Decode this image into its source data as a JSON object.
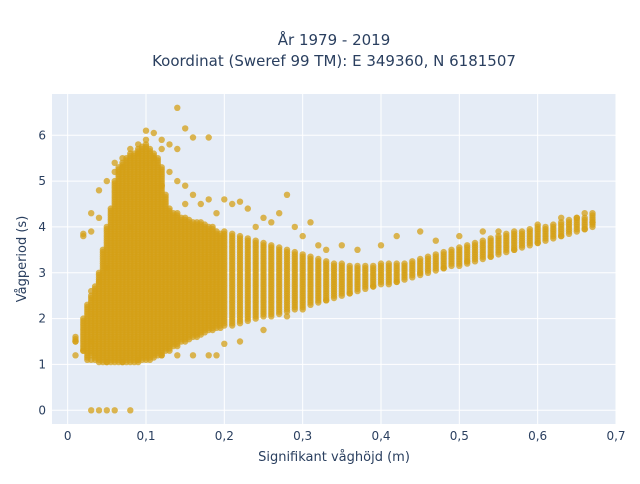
{
  "chart_data": {
    "type": "scatter",
    "title_lines": [
      "År 1979 - 2019",
      "Koordinat (Sweref 99 TM): E 349360, N 6181507"
    ],
    "xlabel": "Signifikant våghöjd (m)",
    "ylabel": "Vågperiod (s)",
    "xlim": [
      -0.02,
      0.7
    ],
    "ylim": [
      -0.3,
      6.9
    ],
    "xticks": [
      0,
      0.1,
      0.2,
      0.3,
      0.4,
      0.5,
      0.6,
      0.7
    ],
    "xtick_labels": [
      "0",
      "0,1",
      "0,2",
      "0,3",
      "0,4",
      "0,5",
      "0,6",
      "0,7"
    ],
    "yticks": [
      0,
      1,
      2,
      3,
      4,
      5,
      6
    ],
    "ytick_labels": [
      "0",
      "1",
      "2",
      "3",
      "4",
      "5",
      "6"
    ],
    "grid": true,
    "marker_color": "#d4a017",
    "plot_background": "#e5ecf6",
    "points": [
      [
        0.01,
        1.5
      ],
      [
        0.01,
        1.2
      ],
      [
        0.02,
        1.3
      ],
      [
        0.02,
        3.8
      ],
      [
        0.02,
        3.85
      ],
      [
        0.03,
        1.5
      ],
      [
        0.03,
        2.6
      ],
      [
        0.03,
        3.9
      ],
      [
        0.03,
        4.3
      ],
      [
        0.04,
        2.8
      ],
      [
        0.04,
        4.2
      ],
      [
        0.04,
        4.8
      ],
      [
        0.05,
        5.0
      ],
      [
        0.05,
        3.1
      ],
      [
        0.06,
        5.2
      ],
      [
        0.06,
        5.4
      ],
      [
        0.07,
        5.5
      ],
      [
        0.07,
        5.3
      ],
      [
        0.08,
        5.7
      ],
      [
        0.08,
        4.0
      ],
      [
        0.09,
        5.8
      ],
      [
        0.09,
        5.6
      ],
      [
        0.1,
        6.1
      ],
      [
        0.1,
        5.9
      ],
      [
        0.11,
        6.05
      ],
      [
        0.11,
        5.5
      ],
      [
        0.12,
        5.9
      ],
      [
        0.12,
        5.7
      ],
      [
        0.12,
        4.9
      ],
      [
        0.13,
        5.8
      ],
      [
        0.13,
        5.2
      ],
      [
        0.14,
        6.6
      ],
      [
        0.14,
        5.7
      ],
      [
        0.14,
        5.0
      ],
      [
        0.15,
        6.15
      ],
      [
        0.15,
        4.5
      ],
      [
        0.15,
        4.9
      ],
      [
        0.16,
        5.95
      ],
      [
        0.16,
        4.7
      ],
      [
        0.17,
        4.5
      ],
      [
        0.18,
        5.95
      ],
      [
        0.18,
        4.6
      ],
      [
        0.19,
        4.3
      ],
      [
        0.2,
        4.6
      ],
      [
        0.21,
        4.5
      ],
      [
        0.22,
        4.55
      ],
      [
        0.23,
        4.4
      ],
      [
        0.24,
        4.0
      ],
      [
        0.25,
        4.2
      ],
      [
        0.26,
        4.1
      ],
      [
        0.27,
        4.3
      ],
      [
        0.28,
        4.7
      ],
      [
        0.29,
        4.0
      ],
      [
        0.3,
        3.8
      ],
      [
        0.31,
        4.1
      ],
      [
        0.32,
        3.6
      ],
      [
        0.33,
        3.5
      ],
      [
        0.35,
        3.6
      ],
      [
        0.37,
        3.5
      ],
      [
        0.4,
        3.6
      ],
      [
        0.42,
        3.8
      ],
      [
        0.45,
        3.9
      ],
      [
        0.47,
        3.7
      ],
      [
        0.5,
        3.8
      ],
      [
        0.53,
        3.9
      ],
      [
        0.55,
        3.9
      ],
      [
        0.57,
        3.9
      ],
      [
        0.6,
        4.05
      ],
      [
        0.63,
        4.2
      ],
      [
        0.65,
        4.2
      ],
      [
        0.66,
        4.3
      ],
      [
        0.67,
        4.3
      ],
      [
        0.03,
        0.0
      ],
      [
        0.04,
        0.0
      ],
      [
        0.05,
        0.0
      ],
      [
        0.06,
        0.0
      ],
      [
        0.08,
        0.0
      ],
      [
        0.03,
        1.1
      ],
      [
        0.05,
        1.05
      ],
      [
        0.07,
        1.05
      ],
      [
        0.09,
        1.1
      ],
      [
        0.11,
        1.15
      ],
      [
        0.12,
        1.2
      ],
      [
        0.14,
        1.2
      ],
      [
        0.16,
        1.2
      ],
      [
        0.18,
        1.2
      ],
      [
        0.19,
        1.2
      ],
      [
        0.2,
        1.45
      ],
      [
        0.22,
        1.5
      ],
      [
        0.25,
        1.75
      ],
      [
        0.28,
        2.05
      ],
      [
        0.3,
        2.2
      ],
      [
        0.33,
        2.4
      ],
      [
        0.36,
        2.55
      ],
      [
        0.39,
        2.7
      ],
      [
        0.42,
        2.8
      ],
      [
        0.45,
        3.0
      ],
      [
        0.48,
        3.1
      ],
      [
        0.51,
        3.25
      ],
      [
        0.54,
        3.35
      ],
      [
        0.57,
        3.5
      ],
      [
        0.6,
        3.65
      ],
      [
        0.63,
        3.8
      ],
      [
        0.66,
        3.95
      ],
      [
        0.67,
        4.1
      ]
    ],
    "dense_bands": [
      [
        0.01,
        1.5,
        1.6
      ],
      [
        0.02,
        1.3,
        2.0
      ],
      [
        0.025,
        1.1,
        2.3
      ],
      [
        0.03,
        1.2,
        2.5
      ],
      [
        0.035,
        1.1,
        2.7
      ],
      [
        0.04,
        1.05,
        3.0
      ],
      [
        0.045,
        1.05,
        3.5
      ],
      [
        0.05,
        1.05,
        4.0
      ],
      [
        0.055,
        1.05,
        4.4
      ],
      [
        0.06,
        1.05,
        5.0
      ],
      [
        0.065,
        1.05,
        5.3
      ],
      [
        0.07,
        1.05,
        5.4
      ],
      [
        0.075,
        1.05,
        5.5
      ],
      [
        0.08,
        1.05,
        5.6
      ],
      [
        0.085,
        1.05,
        5.6
      ],
      [
        0.09,
        1.05,
        5.7
      ],
      [
        0.095,
        1.1,
        5.75
      ],
      [
        0.1,
        1.1,
        5.8
      ],
      [
        0.105,
        1.1,
        5.7
      ],
      [
        0.11,
        1.2,
        5.6
      ],
      [
        0.115,
        1.2,
        5.5
      ],
      [
        0.12,
        1.2,
        5.3
      ],
      [
        0.125,
        1.3,
        4.7
      ],
      [
        0.13,
        1.3,
        4.4
      ],
      [
        0.135,
        1.4,
        4.3
      ],
      [
        0.14,
        1.4,
        4.3
      ],
      [
        0.145,
        1.5,
        4.2
      ],
      [
        0.15,
        1.5,
        4.2
      ],
      [
        0.155,
        1.55,
        4.15
      ],
      [
        0.16,
        1.6,
        4.1
      ],
      [
        0.165,
        1.6,
        4.1
      ],
      [
        0.17,
        1.65,
        4.1
      ],
      [
        0.175,
        1.7,
        4.05
      ],
      [
        0.18,
        1.75,
        4.0
      ],
      [
        0.185,
        1.75,
        4.0
      ],
      [
        0.19,
        1.8,
        3.9
      ],
      [
        0.195,
        1.8,
        3.85
      ],
      [
        0.2,
        1.85,
        3.9
      ],
      [
        0.21,
        1.85,
        3.85
      ],
      [
        0.22,
        1.9,
        3.8
      ],
      [
        0.23,
        1.95,
        3.75
      ],
      [
        0.24,
        2.0,
        3.7
      ],
      [
        0.25,
        2.05,
        3.65
      ],
      [
        0.26,
        2.05,
        3.6
      ],
      [
        0.27,
        2.1,
        3.55
      ],
      [
        0.28,
        2.15,
        3.5
      ],
      [
        0.29,
        2.2,
        3.45
      ],
      [
        0.3,
        2.25,
        3.4
      ],
      [
        0.31,
        2.3,
        3.35
      ],
      [
        0.32,
        2.35,
        3.3
      ],
      [
        0.33,
        2.4,
        3.25
      ],
      [
        0.34,
        2.45,
        3.2
      ],
      [
        0.35,
        2.5,
        3.2
      ],
      [
        0.36,
        2.55,
        3.15
      ],
      [
        0.37,
        2.6,
        3.15
      ],
      [
        0.38,
        2.65,
        3.15
      ],
      [
        0.39,
        2.7,
        3.15
      ],
      [
        0.4,
        2.75,
        3.2
      ],
      [
        0.41,
        2.75,
        3.2
      ],
      [
        0.42,
        2.8,
        3.2
      ],
      [
        0.43,
        2.85,
        3.2
      ],
      [
        0.44,
        2.9,
        3.25
      ],
      [
        0.45,
        2.95,
        3.3
      ],
      [
        0.46,
        3.0,
        3.35
      ],
      [
        0.47,
        3.05,
        3.4
      ],
      [
        0.48,
        3.1,
        3.45
      ],
      [
        0.49,
        3.15,
        3.5
      ],
      [
        0.5,
        3.15,
        3.55
      ],
      [
        0.51,
        3.2,
        3.6
      ],
      [
        0.52,
        3.25,
        3.65
      ],
      [
        0.53,
        3.3,
        3.7
      ],
      [
        0.54,
        3.35,
        3.75
      ],
      [
        0.55,
        3.4,
        3.8
      ],
      [
        0.56,
        3.45,
        3.85
      ],
      [
        0.57,
        3.5,
        3.85
      ],
      [
        0.58,
        3.55,
        3.9
      ],
      [
        0.59,
        3.6,
        3.95
      ],
      [
        0.6,
        3.65,
        4.0
      ],
      [
        0.61,
        3.7,
        4.0
      ],
      [
        0.62,
        3.75,
        4.05
      ],
      [
        0.63,
        3.8,
        4.1
      ],
      [
        0.64,
        3.85,
        4.15
      ],
      [
        0.65,
        3.9,
        4.2
      ],
      [
        0.66,
        3.95,
        4.2
      ],
      [
        0.67,
        4.0,
        4.25
      ]
    ]
  }
}
